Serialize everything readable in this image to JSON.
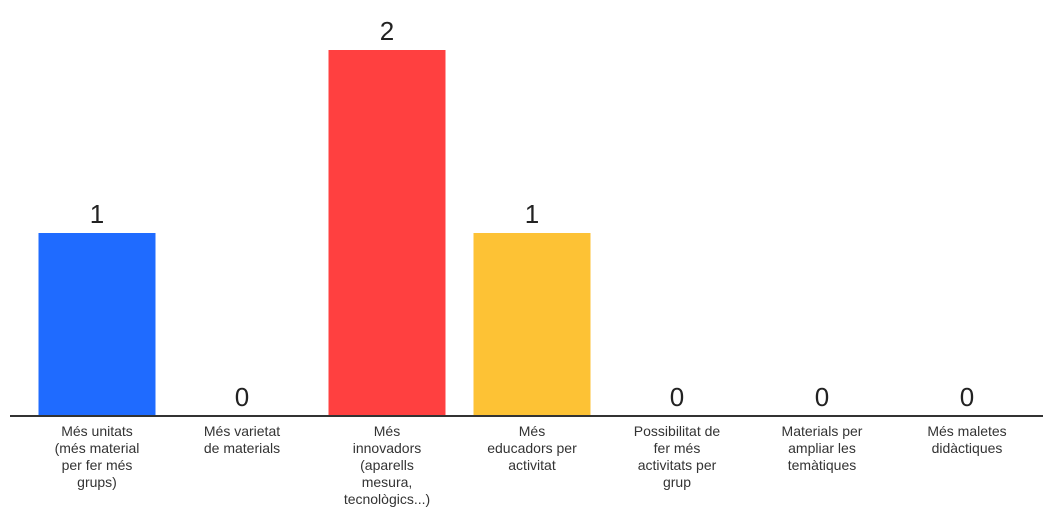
{
  "chart_data": {
    "type": "bar",
    "categories": [
      [
        "Més unitats",
        "(més material",
        "per fer més",
        "grups)"
      ],
      [
        "Més varietat",
        "de materials"
      ],
      [
        "Més",
        "innovadors",
        "(aparells",
        "mesura,",
        "tecnològics...)"
      ],
      [
        "Més",
        "educadors per",
        "activitat"
      ],
      [
        "Possibilitat de",
        "fer més",
        "activitats per",
        "grup"
      ],
      [
        "Materials per",
        "ampliar les",
        "temàtiques"
      ],
      [
        "Més maletes",
        "didàctiques"
      ]
    ],
    "values": [
      1,
      0,
      2,
      1,
      0,
      0,
      0
    ],
    "colors": [
      "#1f6bff",
      "#1f6bff",
      "#ff4040",
      "#fdc235",
      "#1f6bff",
      "#1f6bff",
      "#1f6bff"
    ],
    "ylim": [
      0,
      2
    ],
    "title": "",
    "xlabel": "",
    "ylabel": "",
    "grid": false,
    "axis_color": "#333333"
  }
}
